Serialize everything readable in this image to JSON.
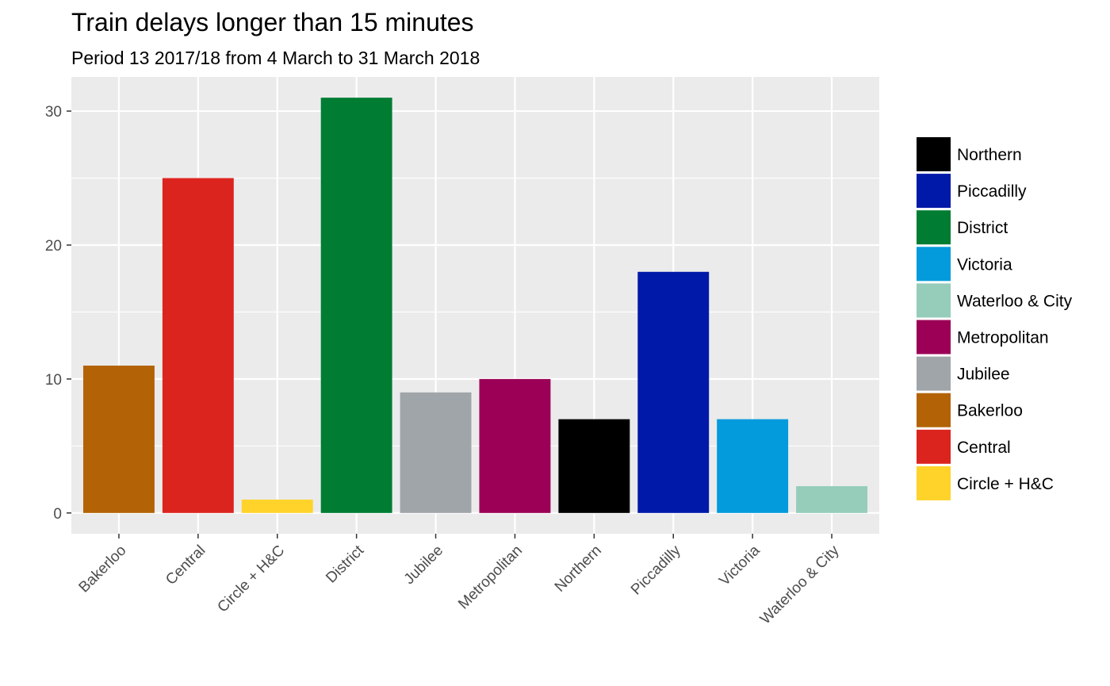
{
  "chart_data": {
    "type": "bar",
    "title": "Train delays longer than 15 minutes",
    "subtitle": "Period 13 2017/18 from 4 March to 31 March 2018",
    "xlabel": "",
    "ylabel": "",
    "categories": [
      "Bakerloo",
      "Central",
      "Circle + H&C",
      "District",
      "Jubilee",
      "Metropolitan",
      "Northern",
      "Piccadilly",
      "Victoria",
      "Waterloo & City"
    ],
    "values": [
      11,
      25,
      1,
      31,
      9,
      10,
      7,
      18,
      7,
      2
    ],
    "colors": [
      "#B36305",
      "#DC241F",
      "#FFD329",
      "#007D32",
      "#A0A5A9",
      "#9B0056",
      "#000000",
      "#0019A8",
      "#039BDC",
      "#95CDBA"
    ],
    "yticks": [
      0,
      10,
      20,
      30
    ],
    "ylim": [
      -1.55,
      32.55
    ],
    "grid": true,
    "legend": {
      "position": "right",
      "entries": [
        {
          "label": "Northern",
          "color": "#000000"
        },
        {
          "label": "Piccadilly",
          "color": "#0019A8"
        },
        {
          "label": "District",
          "color": "#007D32"
        },
        {
          "label": "Victoria",
          "color": "#039BDC"
        },
        {
          "label": "Waterloo & City",
          "color": "#95CDBA"
        },
        {
          "label": "Metropolitan",
          "color": "#9B0056"
        },
        {
          "label": "Jubilee",
          "color": "#A0A5A9"
        },
        {
          "label": "Bakerloo",
          "color": "#B36305"
        },
        {
          "label": "Central",
          "color": "#DC241F"
        },
        {
          "label": "Circle + H&C",
          "color": "#FFD329"
        }
      ]
    }
  }
}
